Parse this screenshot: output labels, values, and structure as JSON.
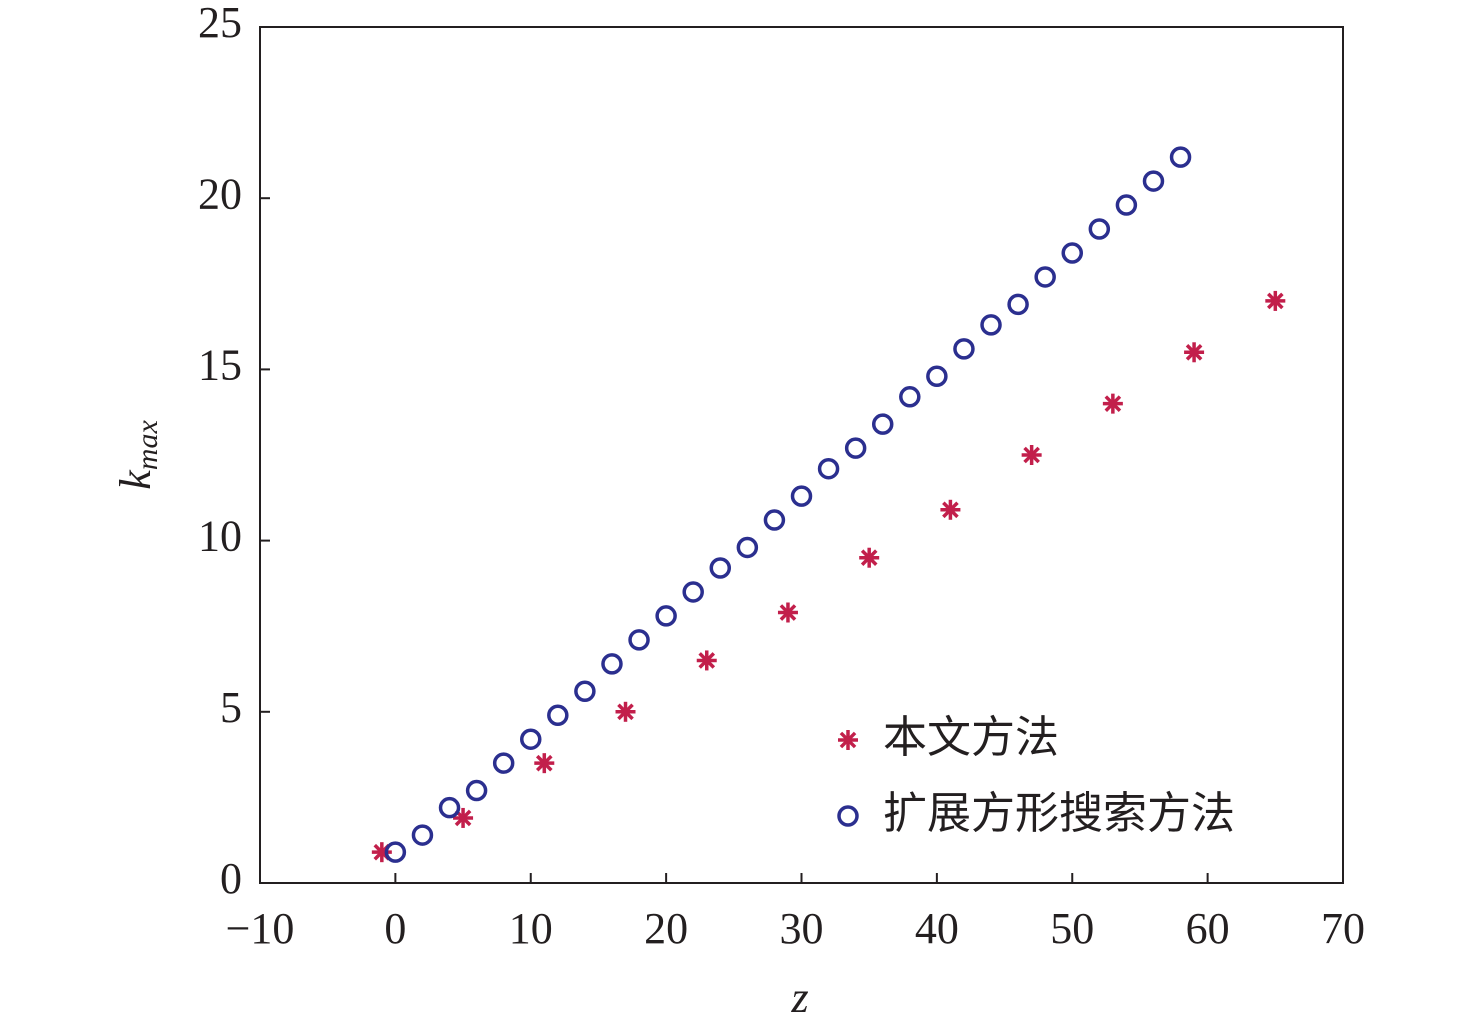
{
  "chart_data": {
    "type": "scatter",
    "x_label": "z",
    "y_label": "k",
    "y_label_sub": "max",
    "xlim": [
      -10,
      70
    ],
    "xticks": [
      {
        "value": -10,
        "label": "−10"
      },
      0,
      10,
      20,
      30,
      40,
      50,
      60,
      70
    ],
    "ylim": [
      0,
      25
    ],
    "yticks": [
      0,
      5,
      10,
      15,
      20,
      25
    ],
    "legend_position": "lower right",
    "series": [
      {
        "name": "本文方法",
        "color": "#c21f4b",
        "marker": "star",
        "x": [
          -1,
          5,
          11,
          17,
          23,
          29,
          35,
          41,
          47,
          53,
          59,
          65
        ],
        "values": [
          0.9,
          1.9,
          3.5,
          5.0,
          6.5,
          7.9,
          9.5,
          10.9,
          12.5,
          14.0,
          15.5,
          17.0
        ]
      },
      {
        "name": "扩展方形搜索方法",
        "color": "#2b2f8f",
        "marker": "circle",
        "x": [
          0,
          2,
          4,
          6,
          8,
          10,
          12,
          14,
          16,
          18,
          20,
          22,
          24,
          26,
          28,
          30,
          32,
          34,
          36,
          38,
          40,
          42,
          44,
          46,
          48,
          50,
          52,
          54,
          56,
          58
        ],
        "values": [
          0.9,
          1.4,
          2.2,
          2.7,
          3.5,
          4.2,
          4.9,
          5.6,
          6.4,
          7.1,
          7.8,
          8.5,
          9.2,
          9.8,
          10.6,
          11.3,
          12.1,
          12.7,
          13.4,
          14.2,
          14.8,
          15.6,
          16.3,
          16.9,
          17.7,
          18.4,
          19.1,
          19.8,
          20.5,
          21.2
        ]
      }
    ]
  }
}
